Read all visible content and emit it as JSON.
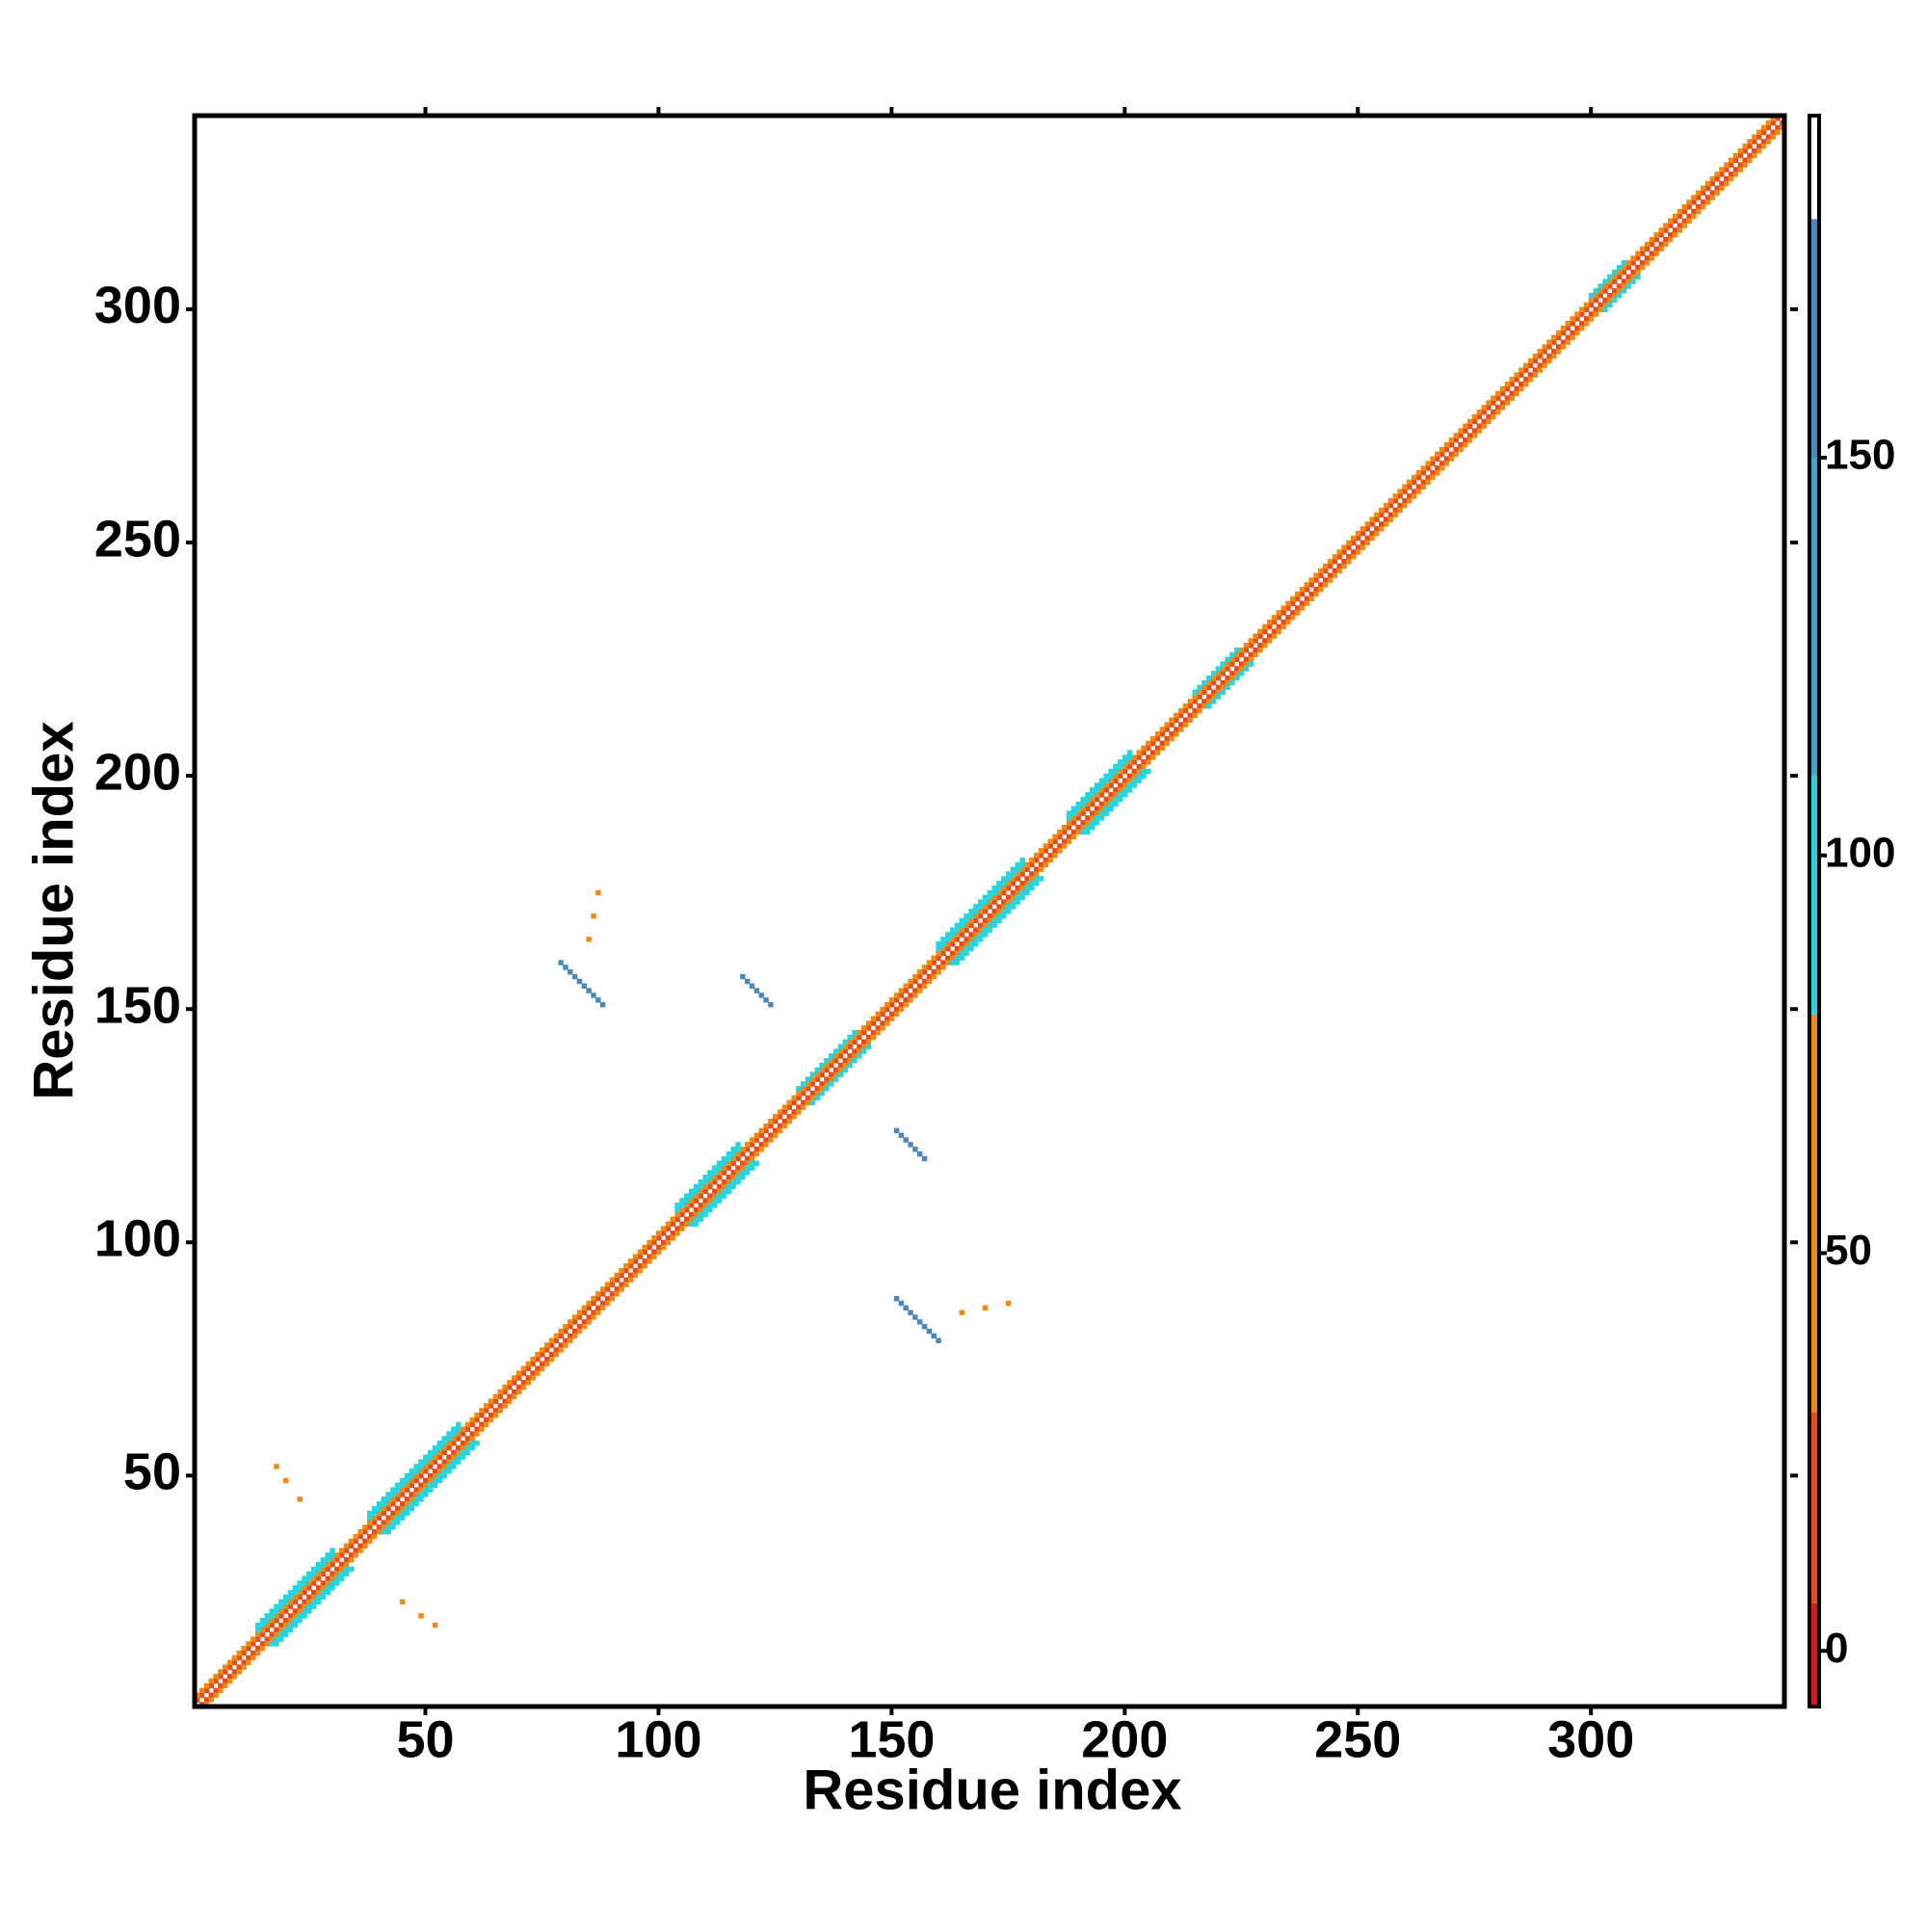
{
  "chart_data": {
    "type": "heatmap",
    "xlabel": "Residue index",
    "ylabel": "Residue index",
    "xlim": [
      0.5,
      341.5
    ],
    "ylim": [
      0.5,
      341.5
    ],
    "xticks": [
      50,
      100,
      150,
      200,
      250,
      300
    ],
    "yticks": [
      50,
      100,
      150,
      200,
      250,
      300
    ],
    "symmetric": true,
    "colorbar": {
      "clim": [
        -7,
        193
      ],
      "ticks": [
        0,
        50,
        100,
        150
      ],
      "levels": [
        {
          "from": -7,
          "to": 6,
          "color": "#d7191c"
        },
        {
          "from": 6,
          "to": 30,
          "color": "#e8491d"
        },
        {
          "from": 30,
          "to": 80,
          "color": "#f08a10"
        },
        {
          "from": 80,
          "to": 110,
          "color": "#25d5e2"
        },
        {
          "from": 110,
          "to": 150,
          "color": "#3ea6d2"
        },
        {
          "from": 150,
          "to": 180,
          "color": "#4c86c0"
        },
        {
          "from": 180,
          "to": 193,
          "color": "#ffffff"
        }
      ]
    },
    "strips": [
      {
        "x0": 1,
        "y0": 2,
        "length": 340,
        "dir": 1,
        "value": 10
      },
      {
        "x0": 1,
        "y0": 3,
        "length": 339,
        "dir": 1,
        "value": 45
      },
      {
        "x0": 14,
        "y0": 17,
        "length": 17,
        "dir": 1,
        "value": 95
      },
      {
        "x0": 14,
        "y0": 18,
        "length": 17,
        "dir": 1,
        "value": 95
      },
      {
        "x0": 38,
        "y0": 41,
        "length": 20,
        "dir": 1,
        "value": 95
      },
      {
        "x0": 38,
        "y0": 42,
        "length": 20,
        "dir": 1,
        "value": 95
      },
      {
        "x0": 104,
        "y0": 107,
        "length": 14,
        "dir": 1,
        "value": 95
      },
      {
        "x0": 104,
        "y0": 108,
        "length": 14,
        "dir": 1,
        "value": 95
      },
      {
        "x0": 130,
        "y0": 133,
        "length": 13,
        "dir": 1,
        "value": 95
      },
      {
        "x0": 160,
        "y0": 163,
        "length": 19,
        "dir": 1,
        "value": 95
      },
      {
        "x0": 160,
        "y0": 164,
        "length": 19,
        "dir": 1,
        "value": 95
      },
      {
        "x0": 188,
        "y0": 191,
        "length": 14,
        "dir": 1,
        "value": 95
      },
      {
        "x0": 188,
        "y0": 192,
        "length": 14,
        "dir": 1,
        "value": 95
      },
      {
        "x0": 215,
        "y0": 218,
        "length": 10,
        "dir": 1,
        "value": 95
      },
      {
        "x0": 300,
        "y0": 303,
        "length": 8,
        "dir": 1,
        "value": 95
      },
      {
        "x0": 79,
        "y0": 160,
        "length": 10,
        "dir": -1,
        "value": 150
      },
      {
        "x0": 118,
        "y0": 157,
        "length": 7,
        "dir": -1,
        "value": 150
      },
      {
        "x0": 85,
        "y0": 165,
        "length": 1,
        "dir": 1,
        "value": 60
      },
      {
        "x0": 86,
        "y0": 170,
        "length": 1,
        "dir": 1,
        "value": 60
      },
      {
        "x0": 87,
        "y0": 175,
        "length": 1,
        "dir": 1,
        "value": 60
      },
      {
        "x0": 18,
        "y0": 52,
        "length": 1,
        "dir": 1,
        "value": 60
      },
      {
        "x0": 20,
        "y0": 49,
        "length": 1,
        "dir": 1,
        "value": 60
      },
      {
        "x0": 23,
        "y0": 45,
        "length": 1,
        "dir": 1,
        "value": 60
      }
    ]
  }
}
